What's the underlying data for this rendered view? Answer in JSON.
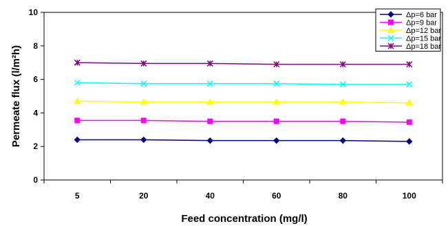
{
  "chart_data": {
    "type": "line",
    "xlabel": "Feed concentration (mg/l)",
    "ylabel": "Permeate flux (l/m²h)",
    "ylim": [
      0,
      10
    ],
    "yticks": [
      0,
      2,
      4,
      6,
      8,
      10
    ],
    "categories": [
      "5",
      "20",
      "40",
      "60",
      "80",
      "100"
    ],
    "grid": false,
    "legend_position": "top-right",
    "series": [
      {
        "name": "Δp=6 bar",
        "color": "#000080",
        "marker": "diamond",
        "values": [
          2.4,
          2.4,
          2.35,
          2.35,
          2.35,
          2.3
        ]
      },
      {
        "name": "Δp=9 bar",
        "color": "#ff00ff",
        "marker": "square",
        "values": [
          3.55,
          3.55,
          3.5,
          3.5,
          3.5,
          3.45
        ]
      },
      {
        "name": "Δp=12 bar",
        "color": "#ffff00",
        "marker": "triangle",
        "values": [
          4.7,
          4.65,
          4.65,
          4.65,
          4.65,
          4.6
        ]
      },
      {
        "name": "Δp=15 bar",
        "color": "#00ffff",
        "marker": "x",
        "values": [
          5.8,
          5.75,
          5.75,
          5.75,
          5.7,
          5.7
        ]
      },
      {
        "name": "Δp=18 bar",
        "color": "#800080",
        "marker": "star",
        "values": [
          7.0,
          6.95,
          6.95,
          6.9,
          6.9,
          6.9
        ]
      }
    ]
  }
}
